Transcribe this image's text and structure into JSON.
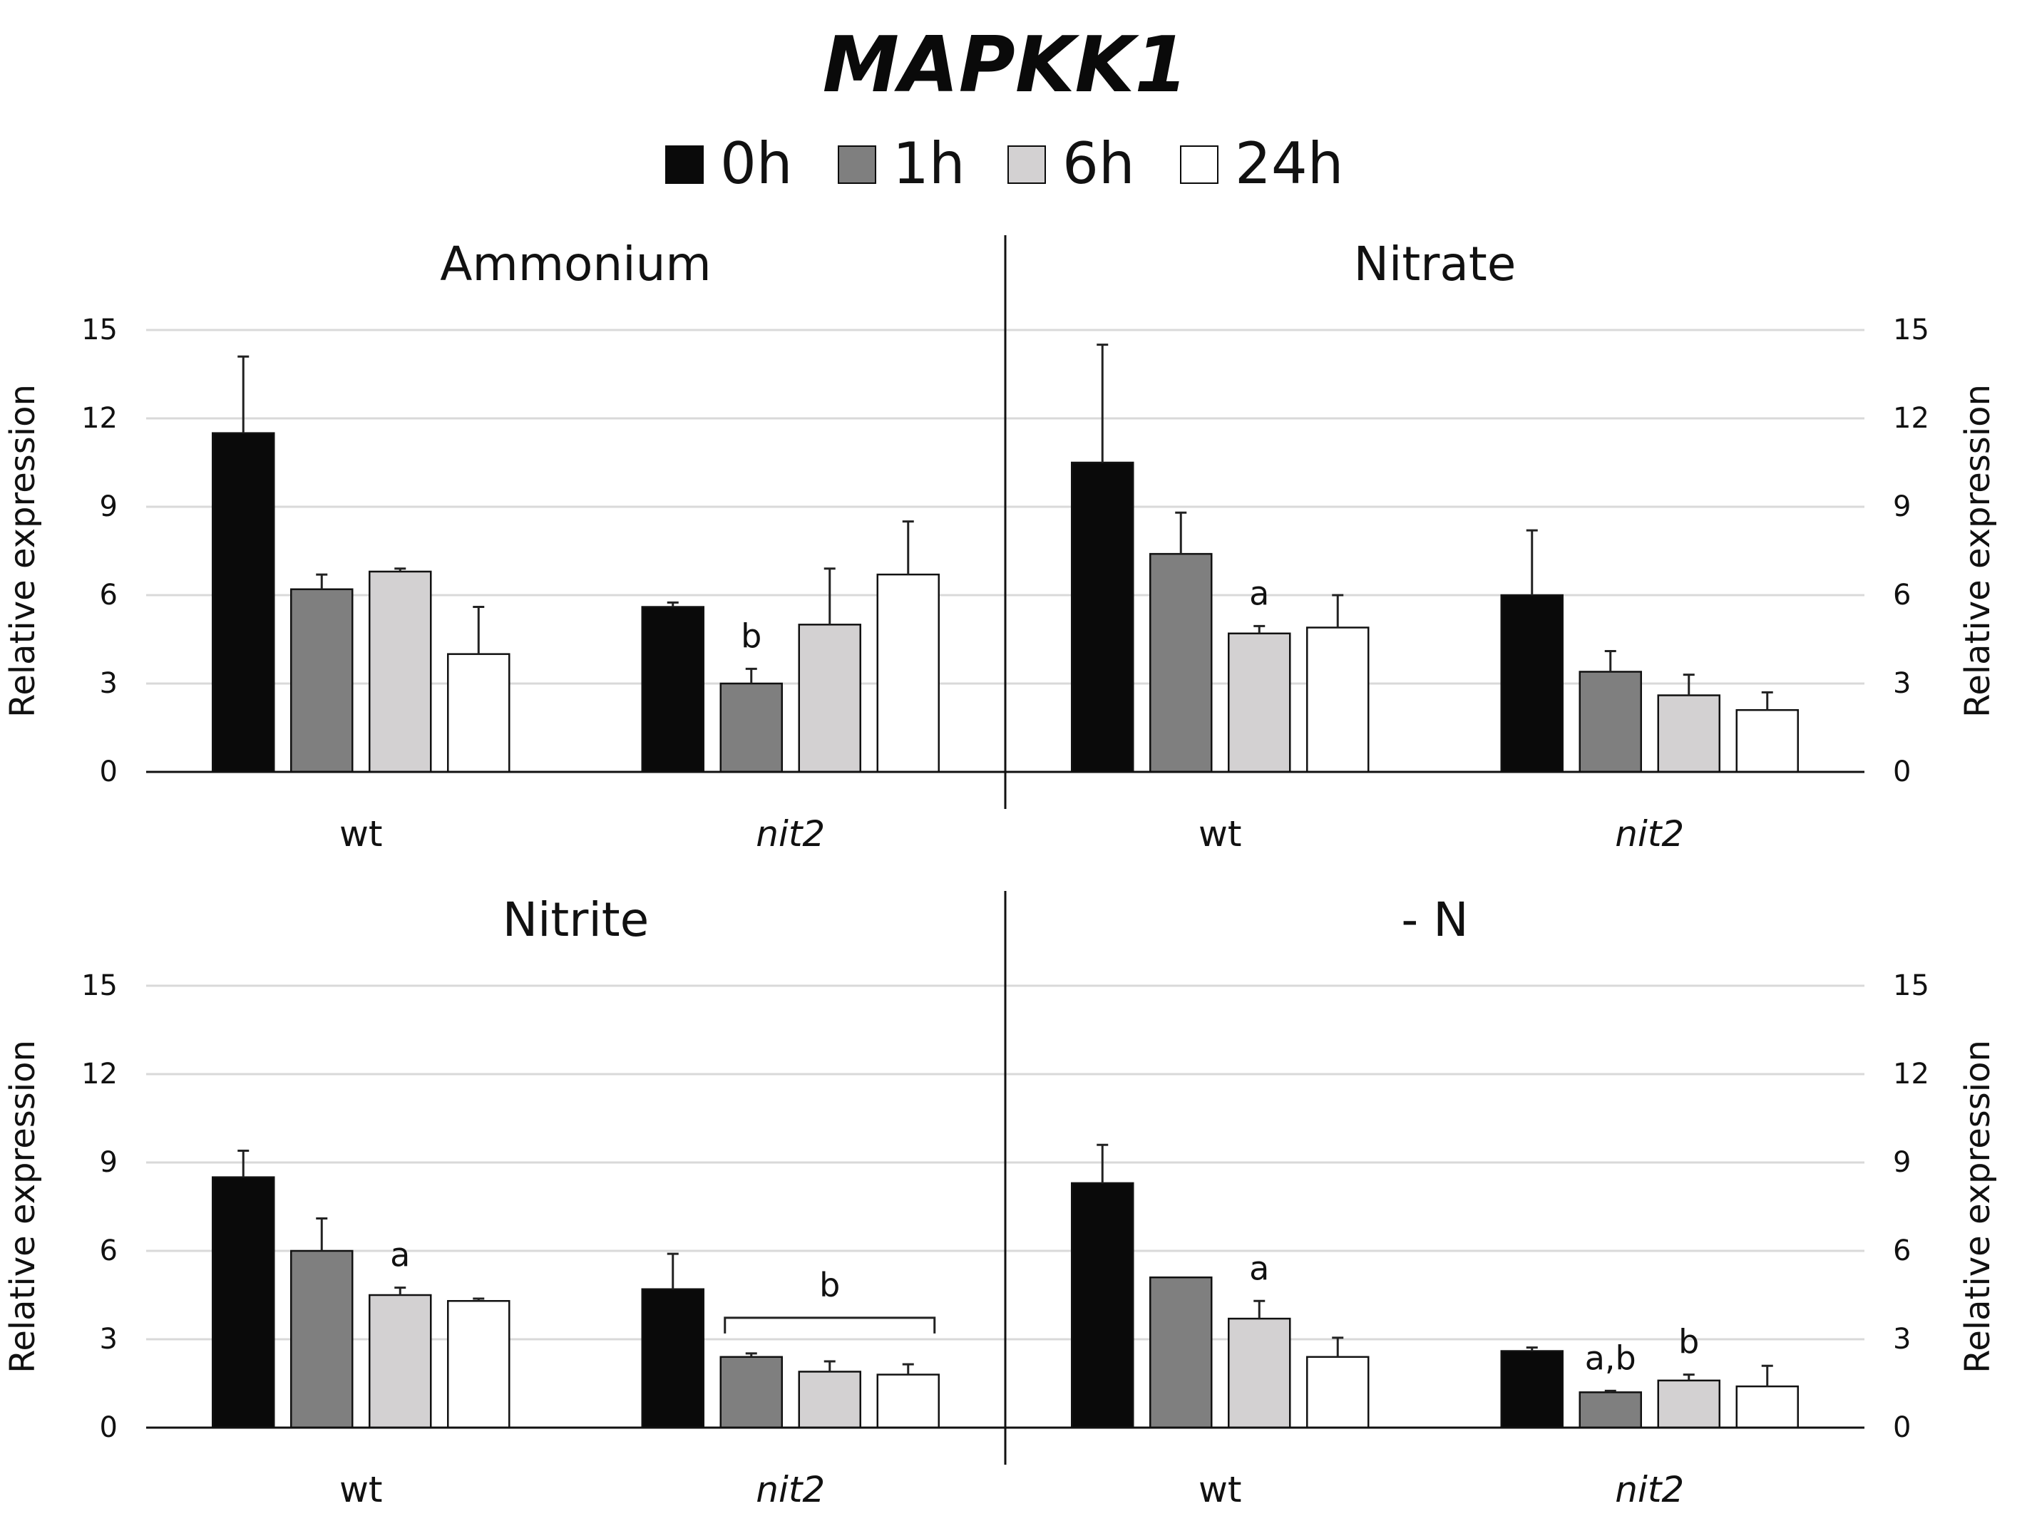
{
  "title": "MAPKK1",
  "legend": [
    {
      "label": "0h",
      "color": "#0a0a0a"
    },
    {
      "label": "1h",
      "color": "#7f7f7f"
    },
    {
      "label": "6h",
      "color": "#d3d1d2"
    },
    {
      "label": "24h",
      "color": "#ffffff"
    }
  ],
  "chart_data": [
    {
      "type": "bar",
      "title": "Ammonium",
      "categories": [
        "wt",
        "nit2"
      ],
      "category_italic": [
        false,
        true
      ],
      "ylabel": "Relative expression",
      "ylim": [
        0,
        15
      ],
      "yticks": [
        0,
        3,
        6,
        9,
        12,
        15
      ],
      "ytick_labels": [
        "0",
        "3",
        "6",
        "9",
        "12",
        "15"
      ],
      "series": [
        {
          "name": "0h",
          "values": [
            11.5,
            5.6
          ],
          "errors": [
            2.6,
            0.15
          ]
        },
        {
          "name": "1h",
          "values": [
            6.2,
            3.0
          ],
          "errors": [
            0.5,
            0.5
          ]
        },
        {
          "name": "6h",
          "values": [
            6.8,
            5.0
          ],
          "errors": [
            0.1,
            1.9
          ]
        },
        {
          "name": "24h",
          "values": [
            4.0,
            6.7
          ],
          "errors": [
            1.6,
            1.8
          ]
        }
      ],
      "annotations": [
        {
          "text": "b",
          "category": 1,
          "series": 1
        }
      ]
    },
    {
      "type": "bar",
      "title": "Nitrate",
      "categories": [
        "wt",
        "nit2"
      ],
      "category_italic": [
        false,
        true
      ],
      "ylabel": "Relative expression",
      "ylim": [
        0,
        15
      ],
      "yticks": [
        0,
        3,
        6,
        9,
        12,
        15
      ],
      "ytick_labels": [
        "0",
        "3",
        "6",
        "9",
        "12",
        "15"
      ],
      "series": [
        {
          "name": "0h",
          "values": [
            10.5,
            6.0
          ],
          "errors": [
            4.0,
            2.2
          ]
        },
        {
          "name": "1h",
          "values": [
            7.4,
            3.4
          ],
          "errors": [
            1.4,
            0.7
          ]
        },
        {
          "name": "6h",
          "values": [
            4.7,
            2.6
          ],
          "errors": [
            0.25,
            0.7
          ]
        },
        {
          "name": "24h",
          "values": [
            4.9,
            2.1
          ],
          "errors": [
            1.1,
            0.6
          ]
        }
      ],
      "annotations": [
        {
          "text": "a",
          "category": 0,
          "series": 2
        }
      ]
    },
    {
      "type": "bar",
      "title": "Nitrite",
      "categories": [
        "wt",
        "nit2"
      ],
      "category_italic": [
        false,
        true
      ],
      "ylabel": "Relative expression",
      "ylim": [
        0,
        15
      ],
      "yticks": [
        0,
        3,
        6,
        9,
        12,
        15
      ],
      "ytick_labels": [
        "0",
        "3",
        "6",
        "9",
        "12",
        "15"
      ],
      "series": [
        {
          "name": "0h",
          "values": [
            8.5,
            4.7
          ],
          "errors": [
            0.9,
            1.2
          ]
        },
        {
          "name": "1h",
          "values": [
            6.0,
            2.4
          ],
          "errors": [
            1.1,
            0.12
          ]
        },
        {
          "name": "6h",
          "values": [
            4.5,
            1.9
          ],
          "errors": [
            0.25,
            0.35
          ]
        },
        {
          "name": "24h",
          "values": [
            4.3,
            1.8
          ],
          "errors": [
            0.08,
            0.35
          ]
        }
      ],
      "annotations": [
        {
          "text": "a",
          "category": 0,
          "series": 2
        },
        {
          "text": "b",
          "category": 1,
          "bracket": [
            1,
            3
          ]
        }
      ]
    },
    {
      "type": "bar",
      "title": "- N",
      "categories": [
        "wt",
        "nit2"
      ],
      "category_italic": [
        false,
        true
      ],
      "ylabel": "Relative expression",
      "ylim": [
        0,
        15
      ],
      "yticks": [
        0,
        3,
        6,
        9,
        12,
        15
      ],
      "ytick_labels": [
        "0",
        "3",
        "6",
        "9",
        "12",
        "15"
      ],
      "series": [
        {
          "name": "0h",
          "values": [
            8.3,
            2.6
          ],
          "errors": [
            1.3,
            0.12
          ]
        },
        {
          "name": "1h",
          "values": [
            5.1,
            1.2
          ],
          "errors": [
            0.0,
            0.05
          ]
        },
        {
          "name": "6h",
          "values": [
            3.7,
            1.6
          ],
          "errors": [
            0.6,
            0.2
          ]
        },
        {
          "name": "24h",
          "values": [
            2.4,
            1.4
          ],
          "errors": [
            0.65,
            0.7
          ]
        }
      ],
      "annotations": [
        {
          "text": "a",
          "category": 0,
          "series": 2
        },
        {
          "text": "a,b",
          "category": 1,
          "series": 1
        },
        {
          "text": "b",
          "category": 1,
          "series": 2
        }
      ]
    }
  ]
}
